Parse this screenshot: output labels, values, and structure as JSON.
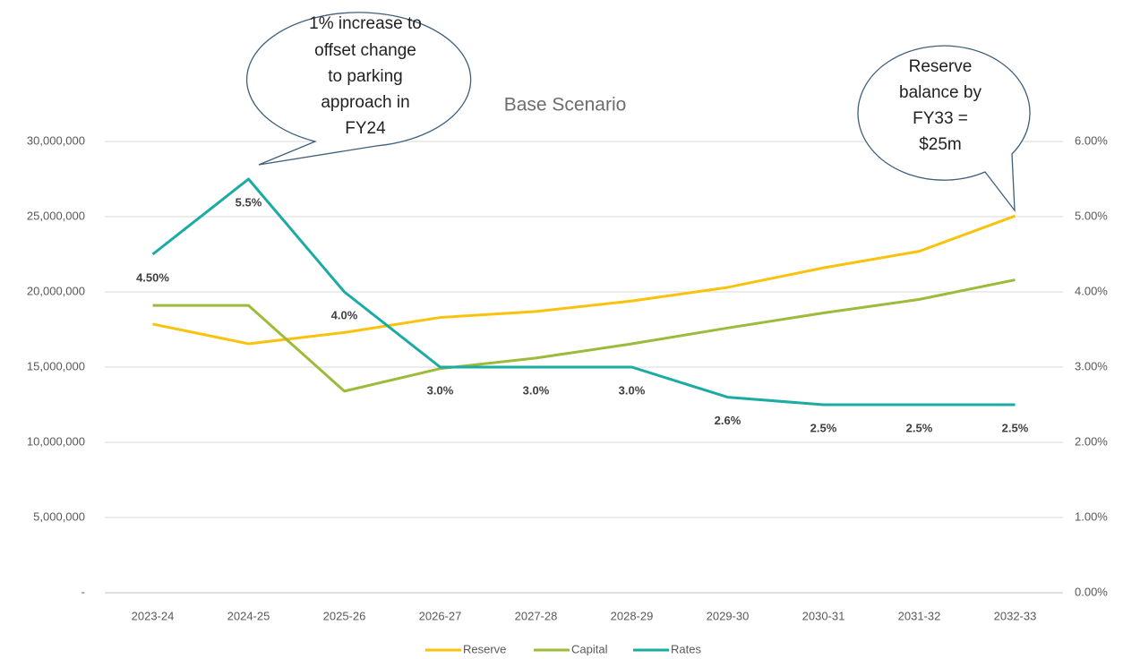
{
  "chart_data": {
    "type": "line",
    "title": "Base Scenario",
    "categories": [
      "2023-24",
      "2024-25",
      "2025-26",
      "2026-27",
      "2027-28",
      "2028-29",
      "2029-30",
      "2030-31",
      "2031-32",
      "2032-33"
    ],
    "series": [
      {
        "name": "Reserve",
        "color": "#fac20a",
        "values": [
          17860000,
          16550000,
          17300000,
          18300000,
          18700000,
          19400000,
          20300000,
          21600000,
          22700000,
          25050000
        ]
      },
      {
        "name": "Capital",
        "color": "#9dbb3a",
        "values": [
          19100000,
          19100000,
          13400000,
          14900000,
          15600000,
          16550000,
          17600000,
          18600000,
          19500000,
          20800000
        ]
      },
      {
        "name": "Rates",
        "color": "#1aaba3",
        "axis": "y2",
        "values": [
          4.5,
          5.5,
          4.0,
          3.0,
          3.0,
          3.0,
          2.6,
          2.5,
          2.5,
          2.5
        ],
        "value_labels": [
          "4.50%",
          "5.5%",
          "4.0%",
          "3.0%",
          "3.0%",
          "3.0%",
          "2.6%",
          "2.5%",
          "2.5%",
          "2.5%"
        ]
      }
    ],
    "ylim": [
      0,
      30000000
    ],
    "yticks": [
      {
        "value": 0,
        "label": "-"
      },
      {
        "value": 5000000,
        "label": "5,000,000"
      },
      {
        "value": 10000000,
        "label": "10,000,000"
      },
      {
        "value": 15000000,
        "label": "15,000,000"
      },
      {
        "value": 20000000,
        "label": "20,000,000"
      },
      {
        "value": 25000000,
        "label": "25,000,000"
      },
      {
        "value": 30000000,
        "label": "30,000,000"
      }
    ],
    "y2lim": [
      0,
      6
    ],
    "y2ticks": [
      {
        "value": 0,
        "label": "0.00%"
      },
      {
        "value": 1,
        "label": "1.00%"
      },
      {
        "value": 2,
        "label": "2.00%"
      },
      {
        "value": 3,
        "label": "3.00%"
      },
      {
        "value": 4,
        "label": "4.00%"
      },
      {
        "value": 5,
        "label": "5.00%"
      },
      {
        "value": 6,
        "label": "6.00%"
      }
    ],
    "grid": true,
    "legend": "bottom",
    "annotations": [
      {
        "lines": [
          "1% increase to",
          "offset change",
          "to parking",
          "approach in",
          "FY24"
        ]
      },
      {
        "lines": [
          "Reserve",
          "balance by",
          "FY33 =",
          "$25m"
        ]
      }
    ]
  }
}
